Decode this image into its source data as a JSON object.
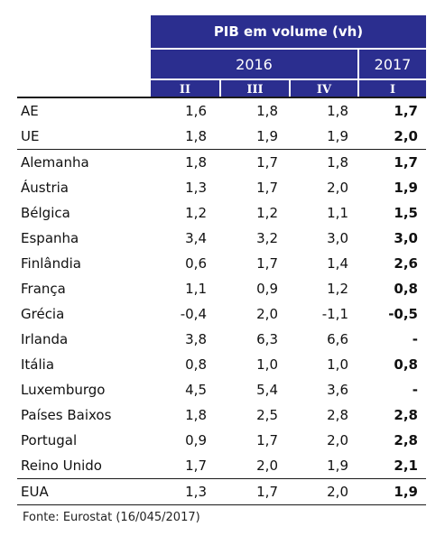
{
  "header": {
    "title": "PIB em volume (vh)",
    "year_2016": "2016",
    "year_2017": "2017",
    "quarters": [
      "II",
      "III",
      "IV",
      "I"
    ]
  },
  "rows": [
    {
      "name": "AE",
      "v1": "1,6",
      "v2": "1,8",
      "v3": "1,8",
      "v4": "1,7"
    },
    {
      "name": "UE",
      "v1": "1,8",
      "v2": "1,9",
      "v3": "1,9",
      "v4": "2,0"
    },
    {
      "name": "Alemanha",
      "v1": "1,8",
      "v2": "1,7",
      "v3": "1,8",
      "v4": "1,7"
    },
    {
      "name": "Áustria",
      "v1": "1,3",
      "v2": "1,7",
      "v3": "2,0",
      "v4": "1,9"
    },
    {
      "name": "Bélgica",
      "v1": "1,2",
      "v2": "1,2",
      "v3": "1,1",
      "v4": "1,5"
    },
    {
      "name": "Espanha",
      "v1": "3,4",
      "v2": "3,2",
      "v3": "3,0",
      "v4": "3,0"
    },
    {
      "name": "Finlândia",
      "v1": "0,6",
      "v2": "1,7",
      "v3": "1,4",
      "v4": "2,6"
    },
    {
      "name": "França",
      "v1": "1,1",
      "v2": "0,9",
      "v3": "1,2",
      "v4": "0,8"
    },
    {
      "name": "Grécia",
      "v1": "-0,4",
      "v2": "2,0",
      "v3": "-1,1",
      "v4": "-0,5"
    },
    {
      "name": "Irlanda",
      "v1": "3,8",
      "v2": "6,3",
      "v3": "6,6",
      "v4": "-"
    },
    {
      "name": "Itália",
      "v1": "0,8",
      "v2": "1,0",
      "v3": "1,0",
      "v4": "0,8"
    },
    {
      "name": "Luxemburgo",
      "v1": "4,5",
      "v2": "5,4",
      "v3": "3,6",
      "v4": "-"
    },
    {
      "name": "Países Baixos",
      "v1": "1,8",
      "v2": "2,5",
      "v3": "2,8",
      "v4": "2,8"
    },
    {
      "name": "Portugal",
      "v1": "0,9",
      "v2": "1,7",
      "v3": "2,0",
      "v4": "2,8"
    },
    {
      "name": "Reino Unido",
      "v1": "1,7",
      "v2": "2,0",
      "v3": "1,9",
      "v4": "2,1"
    },
    {
      "name": "EUA",
      "v1": "1,3",
      "v2": "1,7",
      "v3": "2,0",
      "v4": "1,9"
    }
  ],
  "source": "Fonte: Eurostat (16/045/2017)"
}
